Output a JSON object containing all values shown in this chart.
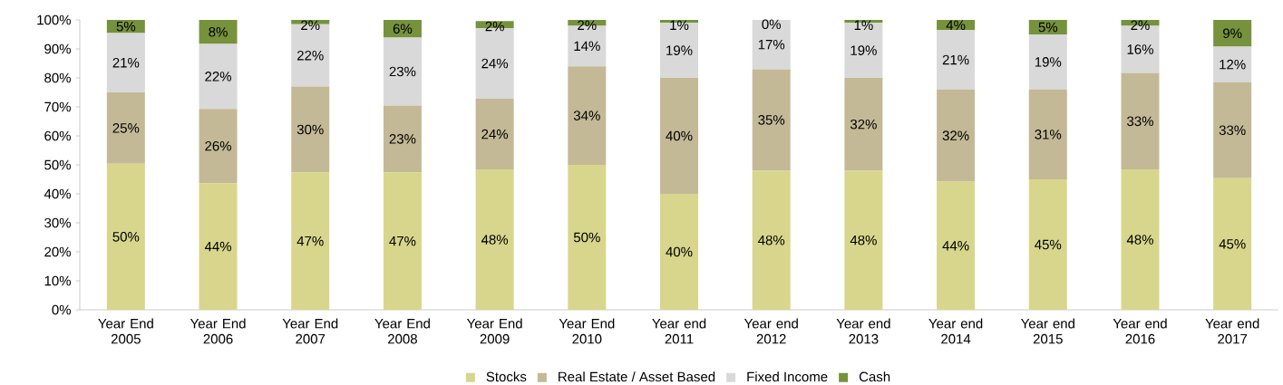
{
  "chart_data": {
    "type": "bar",
    "stacked": true,
    "categories": [
      "Year End 2005",
      "Year End 2006",
      "Year End 2007",
      "Year End 2008",
      "Year End 2009",
      "Year End 2010",
      "Year end 2011",
      "Year end 2012",
      "Year end 2013",
      "Year end 2014",
      "Year end 2015",
      "Year end 2016",
      "Year end 2017"
    ],
    "series": [
      {
        "name": "Stocks",
        "color": "#d8d68c",
        "values": [
          50.4,
          43.7,
          47.4,
          47.4,
          48.4,
          50,
          40,
          48,
          48,
          44.2,
          45,
          48.4,
          45.4
        ],
        "value_labels": [
          "50%",
          "44%",
          "47%",
          "47%",
          "48%",
          "50%",
          "40%",
          "48%",
          "48%",
          "44%",
          "45%",
          "48%",
          "45%"
        ]
      },
      {
        "name": "Real Estate / Asset Based",
        "color": "#c4b996",
        "values": [
          24.6,
          25.6,
          29.6,
          23.1,
          24.4,
          34,
          40,
          35,
          32,
          31.8,
          31,
          33.3,
          33.1
        ],
        "value_labels": [
          "25%",
          "26%",
          "30%",
          "23%",
          "24%",
          "34%",
          "40%",
          "35%",
          "32%",
          "32%",
          "31%",
          "33%",
          "33%"
        ]
      },
      {
        "name": "Fixed Income",
        "color": "#d9d9d9",
        "values": [
          20.5,
          22.4,
          21.5,
          23.4,
          24.4,
          14,
          19,
          17,
          19,
          20.5,
          19,
          16.3,
          12.3
        ],
        "value_labels": [
          "21%",
          "22%",
          "22%",
          "23%",
          "24%",
          "14%",
          "19%",
          "17%",
          "19%",
          "21%",
          "19%",
          "16%",
          "12%"
        ]
      },
      {
        "name": "Cash",
        "color": "#76923c",
        "values": [
          4.5,
          8.3,
          1.5,
          6.1,
          2.4,
          2,
          1,
          0,
          1,
          3.5,
          5,
          2,
          9.2
        ],
        "value_labels": [
          "5%",
          "8%",
          "2%",
          "6%",
          "2%",
          "2%",
          "1%",
          "0%",
          "1%",
          "4%",
          "5%",
          "2%",
          "9%"
        ]
      }
    ],
    "ylim": [
      0,
      100
    ],
    "yticks": [
      {
        "value": 0,
        "label": "0%"
      },
      {
        "value": 10,
        "label": "10%"
      },
      {
        "value": 20,
        "label": "20%"
      },
      {
        "value": 30,
        "label": "30%"
      },
      {
        "value": 40,
        "label": "40%"
      },
      {
        "value": 50,
        "label": "50%"
      },
      {
        "value": 60,
        "label": "60%"
      },
      {
        "value": 70,
        "label": "70%"
      },
      {
        "value": 80,
        "label": "80%"
      },
      {
        "value": 90,
        "label": "90%"
      },
      {
        "value": 100,
        "label": "100%"
      }
    ],
    "legend": "bottom"
  }
}
